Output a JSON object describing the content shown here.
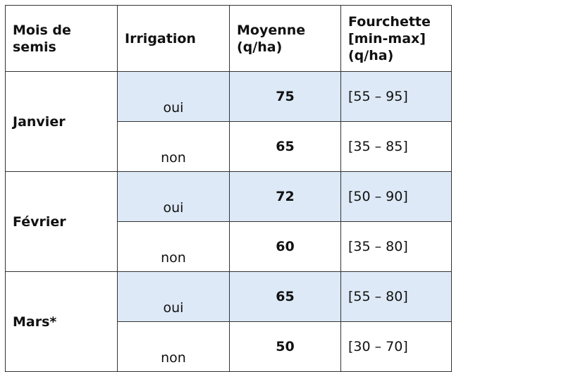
{
  "headers": [
    "Mois de\nsemis",
    "Irrigation",
    "Moyenne\n(q/ha)",
    "Fourchette\n[min-max]\n(q/ha)"
  ],
  "colors": {
    "highlight_row": "#dde9f6",
    "border": "#333333"
  },
  "rows": [
    {
      "month": "Janvier",
      "entries": [
        {
          "irrigation": "oui",
          "average": "75",
          "range": "[55 – 95]"
        },
        {
          "irrigation": "non",
          "average": "65",
          "range": "[35 – 85]"
        }
      ]
    },
    {
      "month": "Février",
      "entries": [
        {
          "irrigation": "oui",
          "average": "72",
          "range": "[50 – 90]"
        },
        {
          "irrigation": "non",
          "average": "60",
          "range": "[35 – 80]"
        }
      ]
    },
    {
      "month": "Mars*",
      "entries": [
        {
          "irrigation": "oui",
          "average": "65",
          "range": "[55 – 80]"
        },
        {
          "irrigation": "non",
          "average": "50",
          "range": "[30 – 70]"
        }
      ]
    }
  ]
}
